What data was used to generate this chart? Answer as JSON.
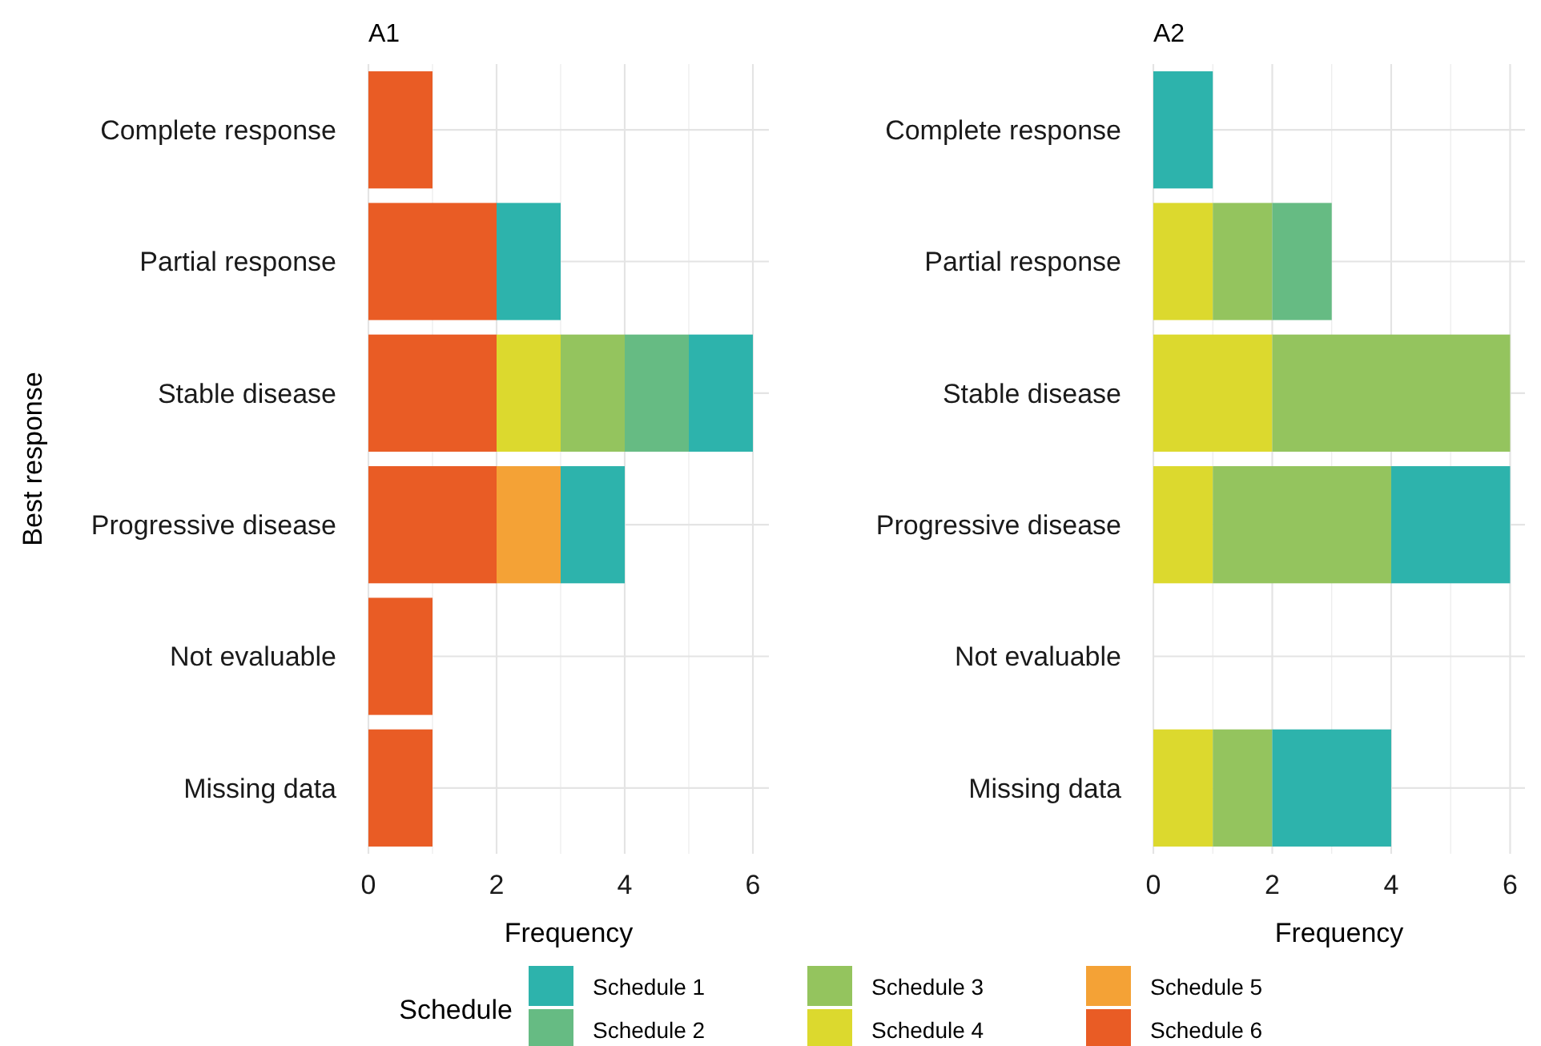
{
  "chart_data": [
    {
      "type": "bar",
      "title": "A1",
      "orientation": "horizontal",
      "stacked": true,
      "xlabel": "Frequency",
      "ylabel": "Best response",
      "categories": [
        "Complete response",
        "Partial response",
        "Stable disease",
        "Progressive disease",
        "Not evaluable",
        "Missing data"
      ],
      "xlim": [
        0,
        6.25
      ],
      "xticks": [
        0,
        2,
        4,
        6
      ],
      "grid": true,
      "legend": "bottom",
      "legend_title": "Schedule",
      "series": [
        {
          "name": "Schedule 6",
          "color": "#e95c25",
          "values": [
            1,
            2,
            2,
            2,
            1,
            1
          ]
        },
        {
          "name": "Schedule 5",
          "color": "#f4a236",
          "values": [
            null,
            null,
            null,
            1,
            null,
            null
          ]
        },
        {
          "name": "Schedule 4",
          "color": "#dcd92e",
          "values": [
            null,
            null,
            1,
            null,
            null,
            null
          ]
        },
        {
          "name": "Schedule 3",
          "color": "#94c45e",
          "values": [
            null,
            null,
            1,
            null,
            null,
            null
          ]
        },
        {
          "name": "Schedule 2",
          "color": "#66bb83",
          "values": [
            null,
            null,
            1,
            null,
            null,
            null
          ]
        },
        {
          "name": "Schedule 1",
          "color": "#2db3ac",
          "values": [
            null,
            1,
            1,
            1,
            null,
            null
          ]
        }
      ]
    },
    {
      "type": "bar",
      "title": "A2",
      "orientation": "horizontal",
      "stacked": true,
      "xlabel": "Frequency",
      "categories": [
        "Complete response",
        "Partial response",
        "Stable disease",
        "Progressive disease",
        "Not evaluable",
        "Missing data"
      ],
      "xlim": [
        0,
        6.25
      ],
      "xticks": [
        0,
        2,
        4,
        6
      ],
      "grid": true,
      "series": [
        {
          "color": "#dcd92e",
          "values": [
            null,
            1,
            2,
            1,
            null,
            1
          ]
        },
        {
          "color": "#94c45e",
          "values": [
            null,
            1,
            4,
            3,
            null,
            1
          ]
        },
        {
          "color": "#66bb83",
          "values": [
            null,
            1,
            null,
            null,
            null,
            null
          ]
        },
        {
          "color": "#2db3ac",
          "values": [
            1,
            null,
            null,
            2,
            null,
            2
          ]
        }
      ]
    }
  ]
}
